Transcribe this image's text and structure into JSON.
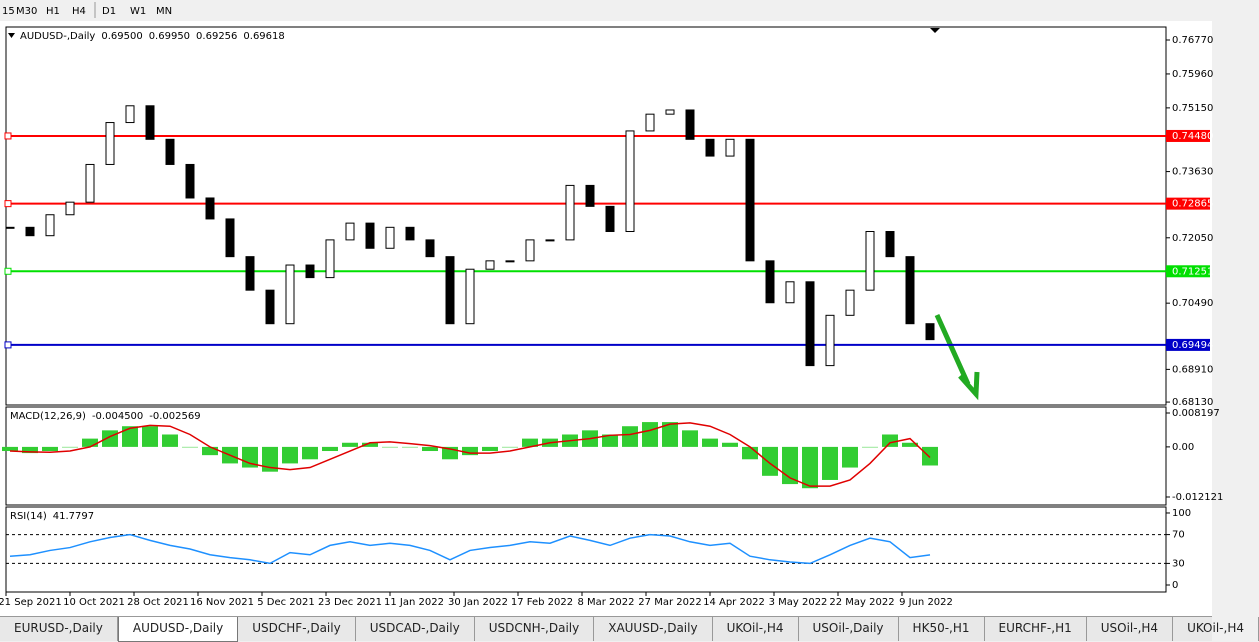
{
  "toolbar": {
    "timeframes": [
      "15",
      "M30",
      "H1",
      "H4",
      "D1",
      "W1",
      "MN"
    ]
  },
  "chart_data": [
    {
      "type": "candlestick",
      "title": "AUDUSD-,Daily",
      "quote": [
        {
          "value": 0.695,
          "label": "0.69500"
        },
        {
          "value": 0.6995,
          "label": "0.69950"
        },
        {
          "value": 0.69256,
          "label": "0.69256"
        },
        {
          "value": 0.69618,
          "label": "0.69618"
        }
      ],
      "values": [
        0.723,
        0.721,
        0.726,
        0.729,
        0.738,
        0.748,
        0.752,
        0.744,
        0.738,
        0.73,
        0.725,
        0.716,
        0.708,
        0.7,
        0.714,
        0.711,
        0.72,
        0.724,
        0.718,
        0.723,
        0.72,
        0.716,
        0.7,
        0.713,
        0.715,
        0.715,
        0.72,
        0.72,
        0.733,
        0.728,
        0.722,
        0.746,
        0.75,
        0.751,
        0.744,
        0.74,
        0.744,
        0.715,
        0.705,
        0.71,
        0.69,
        0.702,
        0.708,
        0.722,
        0.716,
        0.7,
        0.6962
      ],
      "ylim": [
        0.6806,
        0.7708
      ],
      "yticks": [
        {
          "value": 0.7677,
          "label": "0.76770"
        },
        {
          "value": 0.7596,
          "label": "0.75960"
        },
        {
          "value": 0.7515,
          "label": "0.75150"
        },
        {
          "value": 0.7363,
          "label": "0.73630"
        },
        {
          "value": 0.7205,
          "label": "0.72050"
        },
        {
          "value": 0.7049,
          "label": "0.70490"
        },
        {
          "value": 0.6891,
          "label": "0.68910"
        },
        {
          "value": 0.6813,
          "label": "0.68130"
        }
      ],
      "levels": [
        {
          "value": 0.7448,
          "label": "0.74480",
          "color": "#ff0000"
        },
        {
          "value": 0.72865,
          "label": "0.72865",
          "color": "#ff0000"
        },
        {
          "value": 0.71251,
          "label": "0.71251",
          "color": "#00e000"
        },
        {
          "value": 0.69494,
          "label": "0.69494",
          "color": "#0000c8"
        }
      ]
    },
    {
      "type": "macd",
      "title": "MACD(12,26,9)",
      "quote": [
        {
          "value": -0.0045,
          "label": "-0.004500"
        },
        -0.002569
      ],
      "values": [
        -0.001,
        -0.0015,
        -0.001,
        0,
        0.002,
        0.004,
        0.005,
        0.005,
        0.003,
        0,
        -0.002,
        -0.004,
        -0.005,
        -0.006,
        -0.004,
        -0.003,
        -0.001,
        0.001,
        0.001,
        0,
        0,
        -0.001,
        -0.003,
        -0.002,
        -0.001,
        0,
        0.002,
        0.002,
        0.003,
        0.004,
        0.003,
        0.005,
        0.006,
        0.006,
        0.004,
        0.002,
        0.001,
        -0.003,
        -0.007,
        -0.009,
        -0.01,
        -0.008,
        -0.005,
        0,
        0.003,
        0.001,
        -0.0045
      ],
      "signal": [
        -0.001,
        -0.0012,
        -0.0013,
        -0.001,
        0,
        0.0025,
        0.0045,
        0.0052,
        0.005,
        0.003,
        0,
        -0.002,
        -0.004,
        -0.005,
        -0.0055,
        -0.005,
        -0.003,
        -0.001,
        0.001,
        0.0012,
        0.0008,
        0.0003,
        -0.0005,
        -0.0015,
        -0.0015,
        -0.001,
        0,
        0.001,
        0.0015,
        0.002,
        0.0028,
        0.003,
        0.004,
        0.0055,
        0.0058,
        0.005,
        0.003,
        0,
        -0.004,
        -0.0075,
        -0.0095,
        -0.0095,
        -0.008,
        -0.004,
        0.001,
        0.002,
        -0.002569
      ],
      "color": "#32cd32",
      "signal_color": "#e00000",
      "ylim": [
        -0.01406,
        0.00965
      ],
      "yticks": [
        0.008197,
        {
          "value": 0,
          "label": "0.00"
        },
        -0.012121
      ]
    },
    {
      "type": "line",
      "title": "RSI(14)",
      "quote": [
        41.7797
      ],
      "values": [
        40,
        42,
        48,
        52,
        60,
        66,
        70,
        62,
        55,
        50,
        42,
        38,
        35,
        30,
        45,
        42,
        55,
        60,
        55,
        58,
        55,
        48,
        35,
        48,
        52,
        55,
        60,
        58,
        68,
        62,
        55,
        65,
        70,
        68,
        60,
        55,
        58,
        40,
        35,
        32,
        30,
        42,
        55,
        65,
        60,
        38,
        41.7797
      ],
      "color": "#1e90ff",
      "ylim": [
        -9.7,
        108.3
      ],
      "yticks": [
        100,
        70,
        30,
        0
      ],
      "levels": [
        70,
        30
      ]
    }
  ],
  "dates": [
    "21 Sep 2021",
    "10 Oct 2021",
    "28 Oct 2021",
    "16 Nov 2021",
    "5 Dec 2021",
    "23 Dec 2021",
    "11 Jan 2022",
    "30 Jan 2022",
    "17 Feb 2022",
    "8 Mar 2022",
    "27 Mar 2022",
    "14 Apr 2022",
    "3 May 2022",
    "22 May 2022",
    "9 Jun 2022"
  ],
  "tabs": [
    "EURUSD-,Daily",
    "AUDUSD-,Daily",
    "USDCHF-,Daily",
    "USDCAD-,Daily",
    "USDCNH-,Daily",
    "XAUUSD-,Daily",
    "UKOil-,H4",
    "USOil-,Daily",
    "HK50-,H1",
    "EURCHF-,H1",
    "USOil-,H4",
    "UKOil-,H4"
  ],
  "active_tab": "AUDUSD-,Daily"
}
